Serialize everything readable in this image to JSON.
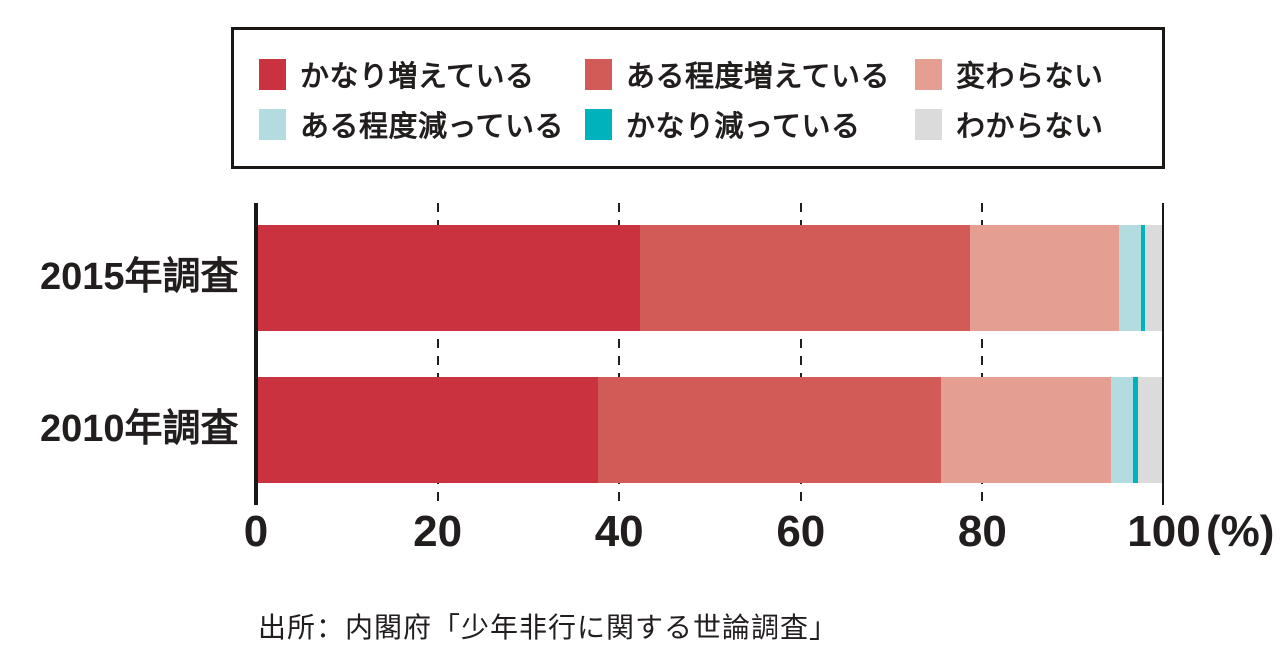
{
  "chart_data": {
    "type": "bar",
    "orientation": "horizontal",
    "stacked": true,
    "categories": [
      "2015年調査",
      "2010年調査"
    ],
    "series": [
      {
        "name": "かなり増えている",
        "color": "#cb3240",
        "values": [
          42.3,
          37.7
        ]
      },
      {
        "name": "ある程度増えている",
        "color": "#d25b57",
        "values": [
          36.3,
          37.7
        ]
      },
      {
        "name": "変わらない",
        "color": "#e59e92",
        "values": [
          16.5,
          18.8
        ]
      },
      {
        "name": "ある程度減っている",
        "color": "#b3dce0",
        "values": [
          2.4,
          2.4
        ]
      },
      {
        "name": "かなり減っている",
        "color": "#00b2bb",
        "values": [
          0.4,
          0.5
        ]
      },
      {
        "name": "わからない",
        "color": "#dbdbdc",
        "values": [
          2.1,
          2.9
        ]
      }
    ],
    "x_ticks": [
      0,
      20,
      40,
      60,
      80,
      100
    ],
    "x_unit": "(%)",
    "xlim": [
      0,
      100
    ],
    "grid": true,
    "legend_position": "top"
  },
  "source": "出所：内閣府「少年非行に関する世論調査」",
  "colors": {
    "axis": "#1a1715",
    "text": "#221e1e",
    "background": "#ffffff"
  }
}
